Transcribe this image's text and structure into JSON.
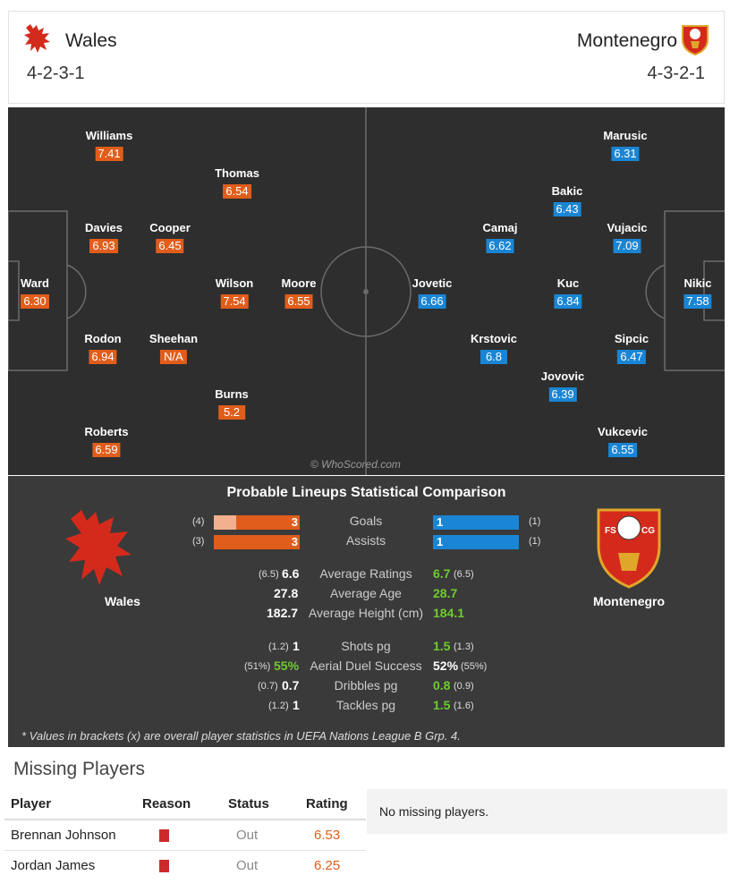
{
  "header": {
    "home": {
      "name": "Wales",
      "formation": "4-2-3-1"
    },
    "away": {
      "name": "Montenegro",
      "formation": "4-3-2-1"
    }
  },
  "pitch": {
    "home_players": [
      {
        "name": "Williams",
        "rating": "7.41"
      },
      {
        "name": "Thomas",
        "rating": "6.54"
      },
      {
        "name": "Davies",
        "rating": "6.93"
      },
      {
        "name": "Cooper",
        "rating": "6.45"
      },
      {
        "name": "Ward",
        "rating": "6.30"
      },
      {
        "name": "Wilson",
        "rating": "7.54"
      },
      {
        "name": "Moore",
        "rating": "6.55"
      },
      {
        "name": "Rodon",
        "rating": "6.94"
      },
      {
        "name": "Sheehan",
        "rating": "N/A"
      },
      {
        "name": "Burns",
        "rating": "5.2"
      },
      {
        "name": "Roberts",
        "rating": "6.59"
      }
    ],
    "away_players": [
      {
        "name": "Marusic",
        "rating": "6.31"
      },
      {
        "name": "Bakic",
        "rating": "6.43"
      },
      {
        "name": "Camaj",
        "rating": "6.62"
      },
      {
        "name": "Vujacic",
        "rating": "7.09"
      },
      {
        "name": "Jovetic",
        "rating": "6.66"
      },
      {
        "name": "Kuc",
        "rating": "6.84"
      },
      {
        "name": "Nikic",
        "rating": "7.58"
      },
      {
        "name": "Krstovic",
        "rating": "6.8"
      },
      {
        "name": "Sipcic",
        "rating": "6.47"
      },
      {
        "name": "Jovovic",
        "rating": "6.39"
      },
      {
        "name": "Vukcevic",
        "rating": "6.55"
      }
    ],
    "watermark": "© WhoScored.com"
  },
  "comparison": {
    "title": "Probable Lineups Statistical Comparison",
    "home_label": "Wales",
    "away_label": "Montenegro",
    "goals": {
      "label": "Goals",
      "home": "3",
      "home_br": "(4)",
      "away": "1",
      "away_br": "(1)"
    },
    "assists": {
      "label": "Assists",
      "home": "3",
      "home_br": "(3)",
      "away": "1",
      "away_br": "(1)"
    },
    "rows": [
      {
        "label": "Average Ratings",
        "home_br": "(6.5)",
        "home": "6.6",
        "away": "6.7",
        "away_br": "(6.5)"
      },
      {
        "label": "Average Age",
        "home_br": "",
        "home": "27.8",
        "away": "28.7",
        "away_br": ""
      },
      {
        "label": "Average Height (cm)",
        "home_br": "",
        "home": "182.7",
        "away": "184.1",
        "away_br": ""
      },
      {
        "label": "Shots pg",
        "home_br": "(1.2)",
        "home": "1",
        "away": "1.5",
        "away_br": "(1.3)"
      },
      {
        "label": "Aerial Duel Success",
        "home_br": "(51%)",
        "home": "55%",
        "away": "52%",
        "away_br": "(55%)"
      },
      {
        "label": "Dribbles pg",
        "home_br": "(0.7)",
        "home": "0.7",
        "away": "0.8",
        "away_br": "(0.9)"
      },
      {
        "label": "Tackles pg",
        "home_br": "(1.2)",
        "home": "1",
        "away": "1.5",
        "away_br": "(1.6)"
      }
    ],
    "footnote": "* Values in brackets (x) are overall player statistics in UEFA Nations League B Grp. 4."
  },
  "missing": {
    "title": "Missing Players",
    "headers": {
      "player": "Player",
      "reason": "Reason",
      "status": "Status",
      "rating": "Rating"
    },
    "rows": [
      {
        "player": "Brennan Johnson",
        "status": "Out",
        "rating": "6.53"
      },
      {
        "player": "Jordan James",
        "status": "Out",
        "rating": "6.25"
      }
    ],
    "away_none": "No missing players."
  },
  "colors": {
    "home": "#e05d1b",
    "away": "#1a85d4",
    "positive": "#6fcc2e",
    "rating_text": "#e05d1b"
  },
  "crest_text": {
    "away_left": "FS",
    "away_right": "CG"
  }
}
